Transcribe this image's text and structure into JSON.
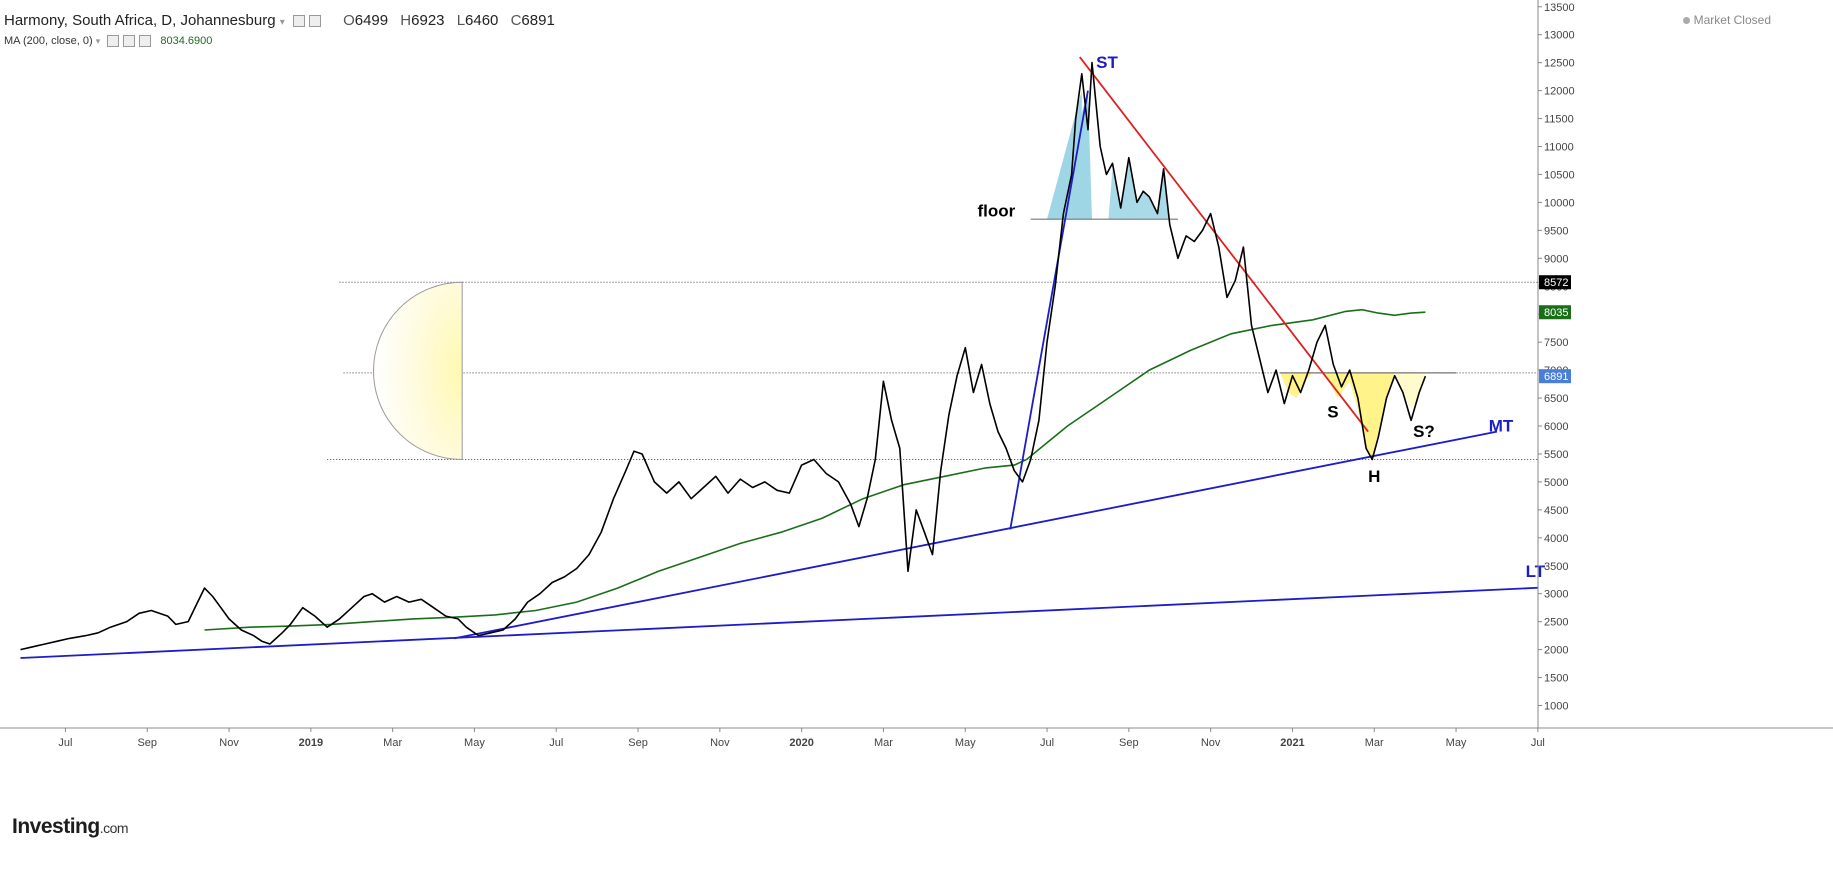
{
  "header": {
    "title": "Harmony, South Africa, D, Johannesburg",
    "open_label": "O",
    "open": "6499",
    "high_label": "H",
    "high": "6923",
    "low_label": "L",
    "low": "6460",
    "close_label": "C",
    "close": "6891",
    "indicator_label": "MA (200, close, 0)",
    "indicator_value": "8034.6900",
    "market_status": "Market Closed"
  },
  "logo": {
    "brand": "Investing",
    "suffix": ".com"
  },
  "colors": {
    "price": "#000000",
    "ma": "#1a6e1a",
    "trend": "#1c1cc9",
    "resistance": "#e02020",
    "fill_blue": "#9fd6e6",
    "fill_yellow": "#fff176",
    "current_badge": "#4a7fd9"
  },
  "chart_data": {
    "type": "line",
    "title": "",
    "xlabel": "",
    "ylabel": "",
    "ylim": [
      500,
      13500
    ],
    "y_ticks": [
      1000,
      1500,
      2000,
      2500,
      3000,
      3500,
      4000,
      4500,
      5000,
      5500,
      6000,
      6500,
      7000,
      7500,
      8000,
      8500,
      9000,
      9500,
      10000,
      10500,
      11000,
      11500,
      12000,
      12500,
      13000,
      13500
    ],
    "x_ticks": [
      {
        "label": "Jul",
        "t": 0.5
      },
      {
        "label": "Sep",
        "t": 2.5
      },
      {
        "label": "Nov",
        "t": 4.5
      },
      {
        "label": "2019",
        "t": 6.5
      },
      {
        "label": "Mar",
        "t": 8.5
      },
      {
        "label": "May",
        "t": 10.5
      },
      {
        "label": "Jul",
        "t": 12.5
      },
      {
        "label": "Sep",
        "t": 14.5
      },
      {
        "label": "Nov",
        "t": 16.5
      },
      {
        "label": "2020",
        "t": 18.5
      },
      {
        "label": "Mar",
        "t": 20.5
      },
      {
        "label": "May",
        "t": 22.5
      },
      {
        "label": "Jul",
        "t": 24.5
      },
      {
        "label": "Sep",
        "t": 26.5
      },
      {
        "label": "Nov",
        "t": 28.5
      },
      {
        "label": "2021",
        "t": 30.5
      },
      {
        "label": "Mar",
        "t": 32.5
      },
      {
        "label": "May",
        "t": 34.5
      },
      {
        "label": "Jul",
        "t": 36.5
      }
    ],
    "series": [
      {
        "name": "Harmony",
        "values": [
          [
            -0.6,
            2000
          ],
          [
            -0.3,
            2050
          ],
          [
            0.0,
            2100
          ],
          [
            0.3,
            2150
          ],
          [
            0.6,
            2200
          ],
          [
            1.0,
            2250
          ],
          [
            1.3,
            2300
          ],
          [
            1.6,
            2400
          ],
          [
            2.0,
            2500
          ],
          [
            2.3,
            2650
          ],
          [
            2.6,
            2700
          ],
          [
            3.0,
            2600
          ],
          [
            3.2,
            2450
          ],
          [
            3.5,
            2500
          ],
          [
            3.7,
            2800
          ],
          [
            3.9,
            3100
          ],
          [
            4.1,
            2950
          ],
          [
            4.3,
            2750
          ],
          [
            4.5,
            2550
          ],
          [
            4.8,
            2350
          ],
          [
            5.1,
            2250
          ],
          [
            5.3,
            2150
          ],
          [
            5.5,
            2100
          ],
          [
            5.8,
            2300
          ],
          [
            6.0,
            2450
          ],
          [
            6.3,
            2750
          ],
          [
            6.6,
            2600
          ],
          [
            6.9,
            2400
          ],
          [
            7.2,
            2550
          ],
          [
            7.5,
            2750
          ],
          [
            7.8,
            2950
          ],
          [
            8.0,
            3000
          ],
          [
            8.3,
            2850
          ],
          [
            8.6,
            2950
          ],
          [
            8.9,
            2850
          ],
          [
            9.2,
            2900
          ],
          [
            9.5,
            2750
          ],
          [
            9.8,
            2600
          ],
          [
            10.1,
            2550
          ],
          [
            10.3,
            2400
          ],
          [
            10.6,
            2250
          ],
          [
            10.9,
            2300
          ],
          [
            11.2,
            2350
          ],
          [
            11.5,
            2550
          ],
          [
            11.8,
            2850
          ],
          [
            12.1,
            3000
          ],
          [
            12.4,
            3200
          ],
          [
            12.7,
            3300
          ],
          [
            13.0,
            3450
          ],
          [
            13.3,
            3700
          ],
          [
            13.6,
            4100
          ],
          [
            13.9,
            4700
          ],
          [
            14.2,
            5200
          ],
          [
            14.4,
            5550
          ],
          [
            14.6,
            5500
          ],
          [
            14.9,
            5000
          ],
          [
            15.2,
            4800
          ],
          [
            15.5,
            5000
          ],
          [
            15.8,
            4700
          ],
          [
            16.1,
            4900
          ],
          [
            16.4,
            5100
          ],
          [
            16.7,
            4800
          ],
          [
            17.0,
            5050
          ],
          [
            17.3,
            4900
          ],
          [
            17.6,
            5000
          ],
          [
            17.9,
            4850
          ],
          [
            18.2,
            4800
          ],
          [
            18.5,
            5300
          ],
          [
            18.8,
            5400
          ],
          [
            19.1,
            5150
          ],
          [
            19.4,
            5000
          ],
          [
            19.7,
            4600
          ],
          [
            19.9,
            4200
          ],
          [
            20.1,
            4700
          ],
          [
            20.3,
            5400
          ],
          [
            20.5,
            6800
          ],
          [
            20.7,
            6100
          ],
          [
            20.9,
            5600
          ],
          [
            21.1,
            3400
          ],
          [
            21.3,
            4500
          ],
          [
            21.5,
            4100
          ],
          [
            21.7,
            3700
          ],
          [
            21.9,
            5200
          ],
          [
            22.1,
            6200
          ],
          [
            22.3,
            6900
          ],
          [
            22.5,
            7400
          ],
          [
            22.7,
            6600
          ],
          [
            22.9,
            7100
          ],
          [
            23.1,
            6400
          ],
          [
            23.3,
            5900
          ],
          [
            23.5,
            5600
          ],
          [
            23.7,
            5200
          ],
          [
            23.9,
            5000
          ],
          [
            24.1,
            5400
          ],
          [
            24.3,
            6100
          ],
          [
            24.5,
            7500
          ],
          [
            24.7,
            8500
          ],
          [
            24.9,
            9800
          ],
          [
            25.1,
            10500
          ],
          [
            25.2,
            11500
          ],
          [
            25.35,
            12300
          ],
          [
            25.5,
            11300
          ],
          [
            25.6,
            12500
          ],
          [
            25.8,
            11000
          ],
          [
            25.95,
            10500
          ],
          [
            26.1,
            10700
          ],
          [
            26.3,
            9900
          ],
          [
            26.5,
            10800
          ],
          [
            26.7,
            10000
          ],
          [
            26.85,
            10200
          ],
          [
            27.0,
            10100
          ],
          [
            27.2,
            9800
          ],
          [
            27.35,
            10600
          ],
          [
            27.5,
            9600
          ],
          [
            27.7,
            9000
          ],
          [
            27.9,
            9400
          ],
          [
            28.1,
            9300
          ],
          [
            28.3,
            9500
          ],
          [
            28.5,
            9800
          ],
          [
            28.7,
            9200
          ],
          [
            28.9,
            8300
          ],
          [
            29.1,
            8600
          ],
          [
            29.3,
            9200
          ],
          [
            29.5,
            7800
          ],
          [
            29.7,
            7200
          ],
          [
            29.9,
            6600
          ],
          [
            30.1,
            7000
          ],
          [
            30.3,
            6400
          ],
          [
            30.5,
            6900
          ],
          [
            30.7,
            6600
          ],
          [
            30.9,
            7000
          ],
          [
            31.1,
            7500
          ],
          [
            31.3,
            7800
          ],
          [
            31.5,
            7100
          ],
          [
            31.7,
            6700
          ],
          [
            31.9,
            7000
          ],
          [
            32.1,
            6500
          ],
          [
            32.3,
            5600
          ],
          [
            32.45,
            5400
          ],
          [
            32.6,
            5800
          ],
          [
            32.8,
            6500
          ],
          [
            33.0,
            6900
          ],
          [
            33.2,
            6600
          ],
          [
            33.4,
            6100
          ],
          [
            33.6,
            6600
          ],
          [
            33.75,
            6891
          ]
        ]
      },
      {
        "name": "MA (200, close, 0)",
        "values": [
          [
            3.9,
            2350
          ],
          [
            5.0,
            2400
          ],
          [
            6.0,
            2420
          ],
          [
            7.0,
            2450
          ],
          [
            8.0,
            2500
          ],
          [
            9.0,
            2550
          ],
          [
            10.0,
            2580
          ],
          [
            11.0,
            2620
          ],
          [
            12.0,
            2700
          ],
          [
            13.0,
            2850
          ],
          [
            14.0,
            3100
          ],
          [
            15.0,
            3400
          ],
          [
            16.0,
            3650
          ],
          [
            17.0,
            3900
          ],
          [
            18.0,
            4100
          ],
          [
            19.0,
            4350
          ],
          [
            20.0,
            4700
          ],
          [
            21.0,
            4950
          ],
          [
            22.0,
            5100
          ],
          [
            23.0,
            5250
          ],
          [
            23.7,
            5300
          ],
          [
            24.0,
            5400
          ],
          [
            24.5,
            5700
          ],
          [
            25.0,
            6000
          ],
          [
            26.0,
            6500
          ],
          [
            27.0,
            7000
          ],
          [
            28.0,
            7350
          ],
          [
            29.0,
            7650
          ],
          [
            30.0,
            7800
          ],
          [
            31.0,
            7900
          ],
          [
            31.8,
            8050
          ],
          [
            32.2,
            8080
          ],
          [
            32.6,
            8020
          ],
          [
            33.0,
            7980
          ],
          [
            33.4,
            8020
          ],
          [
            33.75,
            8035
          ]
        ]
      }
    ],
    "drawings": {
      "lt_line": [
        [
          -0.6,
          1850
        ],
        [
          37.8,
          3150
        ]
      ],
      "mt_line": [
        [
          10.0,
          2200
        ],
        [
          35.5,
          5900
        ]
      ],
      "st_line": [
        [
          23.6,
          4150
        ],
        [
          25.5,
          12000
        ]
      ],
      "resistance_line": [
        [
          25.3,
          12600
        ],
        [
          32.35,
          5900
        ]
      ],
      "floor_line": [
        [
          24.1,
          9700
        ],
        [
          27.7,
          9700
        ]
      ],
      "neckline": [
        [
          30.2,
          6950
        ],
        [
          34.5,
          6950
        ]
      ],
      "level_8572": [
        [
          7.2,
          8572
        ],
        [
          37.8,
          8572
        ]
      ],
      "level_mid": [
        [
          7.3,
          6950
        ],
        [
          37.5,
          6950
        ]
      ],
      "level_low": [
        [
          6.9,
          5400
        ],
        [
          37.5,
          5400
        ]
      ],
      "half_circle": {
        "t": 10.2,
        "top": 8572,
        "bottom": 5400
      }
    },
    "annotations": [
      {
        "text": "ST",
        "t": 25.7,
        "y": 12400,
        "color": "#1c1cc9"
      },
      {
        "text": "floor",
        "t": 22.8,
        "y": 9750,
        "color": "#000000"
      },
      {
        "text": "S",
        "t": 31.35,
        "y": 6150,
        "color": "#000000"
      },
      {
        "text": "H",
        "t": 32.35,
        "y": 5000,
        "color": "#000000"
      },
      {
        "text": "S?",
        "t": 33.45,
        "y": 5800,
        "color": "#000000"
      },
      {
        "text": "MT",
        "t": 35.3,
        "y": 5900,
        "color": "#1c1cc9"
      },
      {
        "text": "LT",
        "t": 36.2,
        "y": 3300,
        "color": "#1c1cc9"
      }
    ],
    "price_labels": [
      {
        "text": "8572",
        "y": 8572,
        "bg": "#000000"
      },
      {
        "text": "8035",
        "y": 8035,
        "bg": "#1a6e1a"
      },
      {
        "text": "6891",
        "y": 6891,
        "bg": "#4a7fd9"
      }
    ],
    "grid": false
  }
}
